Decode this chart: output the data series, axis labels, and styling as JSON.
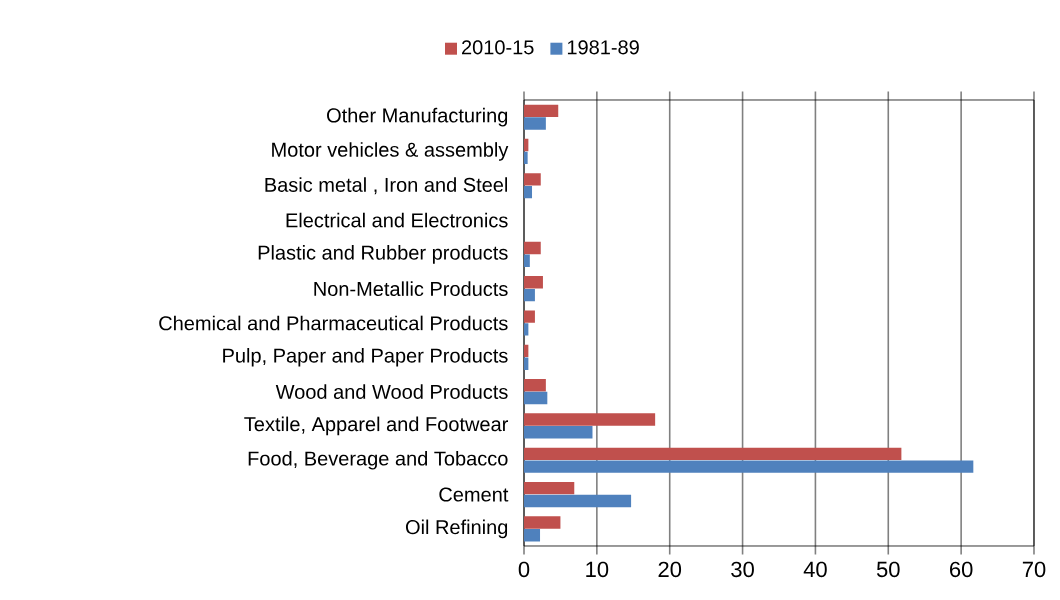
{
  "chart_data": {
    "type": "bar",
    "orientation": "horizontal",
    "categories": [
      "Other Manufacturing",
      "Motor vehicles &  assembly",
      "Basic metal , Iron and Steel",
      "Electrical and Electronics",
      "Plastic and Rubber products",
      "Non-Metallic Products",
      "Chemical and  Pharmaceutical Products",
      "Pulp, Paper and Paper  Products",
      "Wood and Wood Products",
      "Textile, Apparel and Footwear",
      "Food, Beverage and Tobacco",
      "Cement",
      "Oil Refining"
    ],
    "series": [
      {
        "name": "2010-15",
        "color": "#c0504d",
        "values": [
          4.7,
          0.6,
          2.3,
          0,
          2.3,
          2.6,
          1.5,
          0.6,
          3.0,
          18.0,
          51.8,
          6.9,
          5.0
        ]
      },
      {
        "name": "1981-89",
        "color": "#4f81bd",
        "values": [
          3.0,
          0.5,
          1.1,
          0,
          0.8,
          1.5,
          0.6,
          0.6,
          3.2,
          9.4,
          61.7,
          14.7,
          2.2
        ]
      }
    ],
    "xlim": [
      0,
      70
    ],
    "xticks": [
      0,
      10,
      20,
      30,
      40,
      50,
      60,
      70
    ],
    "grid": "x",
    "legend": "top"
  }
}
